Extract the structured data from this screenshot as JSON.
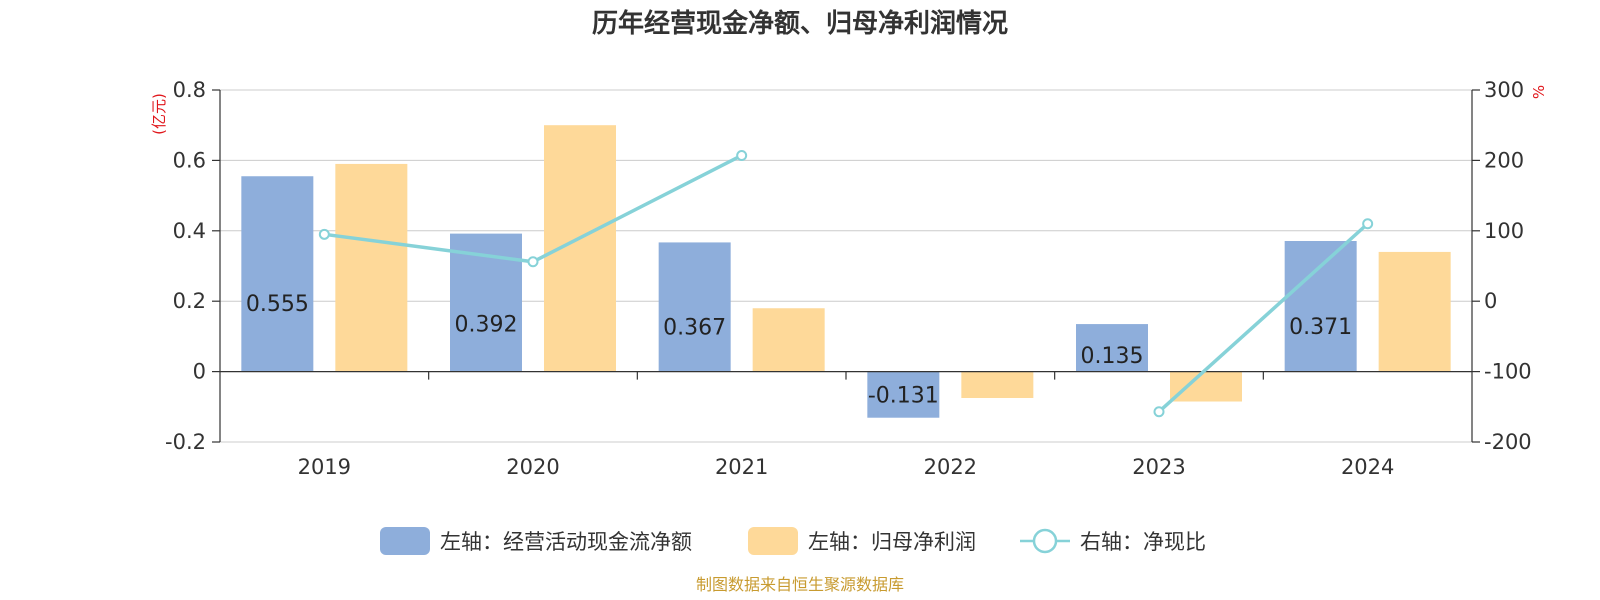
{
  "chart_data": {
    "type": "bar",
    "title": "历年经营现金净额、归母净利润情况",
    "categories": [
      "2019",
      "2020",
      "2021",
      "2022",
      "2023",
      "2024"
    ],
    "left_axis": {
      "unit": "(亿元)",
      "ylim": [
        -0.2,
        0.8
      ],
      "ticks": [
        "-0.2",
        "0",
        "0.2",
        "0.4",
        "0.6",
        "0.8"
      ],
      "tick_values": [
        -0.2,
        0,
        0.2,
        0.4,
        0.6,
        0.8
      ]
    },
    "right_axis": {
      "unit": "%",
      "ylim": [
        -200,
        300
      ],
      "ticks": [
        "-200",
        "-100",
        "0",
        "100",
        "200",
        "300"
      ],
      "tick_values": [
        -200,
        -100,
        0,
        100,
        200,
        300
      ]
    },
    "series": [
      {
        "name": "左轴：经营活动现金流净额",
        "kind": "bar",
        "axis": "left",
        "color": "#8eaedb",
        "values": [
          0.555,
          0.392,
          0.367,
          -0.131,
          0.135,
          0.371
        ],
        "labels": [
          "0.555",
          "0.392",
          "0.367",
          "-0.131",
          "0.135",
          "0.371"
        ]
      },
      {
        "name": "左轴：归母净利润",
        "kind": "bar",
        "axis": "left",
        "color": "#fed999",
        "values": [
          0.59,
          0.7,
          0.18,
          -0.075,
          -0.085,
          0.34
        ]
      },
      {
        "name": "右轴：净现比",
        "kind": "line",
        "axis": "right",
        "color": "#86d2d8",
        "values": [
          95,
          56,
          207,
          null,
          -157,
          110
        ]
      }
    ],
    "grid": true,
    "legend_position": "bottom"
  },
  "footer": {
    "source": "制图数据来自恒生聚源数据库"
  },
  "colors": {
    "accent_red": "#e0161b",
    "source_gold": "#c89b30",
    "axis": "#333333",
    "grid": "#cccccc"
  }
}
